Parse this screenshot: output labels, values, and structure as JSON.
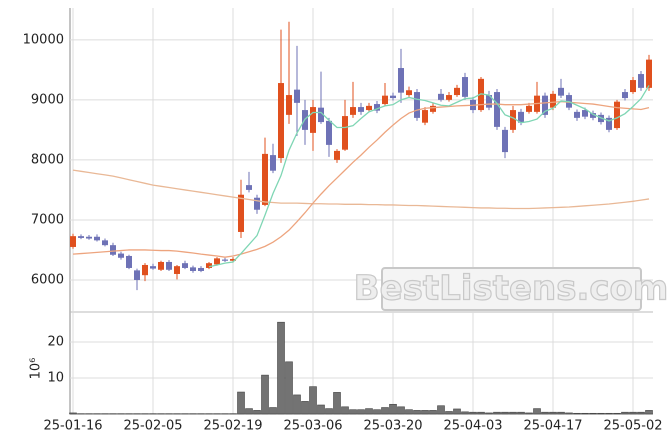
{
  "watermark": "BestListens.com",
  "chart_data": [
    {
      "type": "candlestick",
      "up_color": "#e0501e",
      "down_color": "#6e72b6",
      "ylim": [
        5500,
        10530
      ],
      "yticks": [
        6000,
        7000,
        8000,
        9000,
        10000
      ],
      "grid": true,
      "open": [
        6550,
        6730,
        6720,
        6720,
        6660,
        6580,
        6440,
        6400,
        6160,
        6080,
        6230,
        6170,
        6300,
        6100,
        6280,
        6210,
        6200,
        6200,
        6260,
        6340,
        6320,
        6800,
        7580,
        7370,
        7250,
        8080,
        8030,
        8750,
        9170,
        8830,
        8450,
        8870,
        8650,
        8000,
        8170,
        8750,
        8880,
        8830,
        8930,
        8930,
        9070,
        9530,
        9080,
        9130,
        8620,
        8800,
        9100,
        9000,
        9080,
        9380,
        9000,
        8830,
        9080,
        9130,
        8500,
        8500,
        8800,
        8800,
        8800,
        9070,
        8870,
        9200,
        9080,
        8800,
        8830,
        8780,
        8750,
        8700,
        8530,
        9130,
        9130,
        9430,
        9200
      ],
      "high": [
        6770,
        6760,
        6750,
        6760,
        6690,
        6620,
        6470,
        6420,
        6190,
        6280,
        6270,
        6320,
        6330,
        6250,
        6320,
        6240,
        6230,
        6300,
        6380,
        6370,
        6380,
        7670,
        7800,
        7420,
        8370,
        8270,
        10170,
        10300,
        9900,
        9000,
        9000,
        9470,
        8700,
        8180,
        9000,
        9300,
        8950,
        8950,
        8980,
        9280,
        9120,
        9850,
        9220,
        9180,
        8880,
        8950,
        9180,
        9130,
        9250,
        9450,
        9050,
        9380,
        9150,
        9180,
        8550,
        8900,
        8850,
        8950,
        9300,
        9120,
        9150,
        9350,
        9120,
        8840,
        8870,
        8820,
        8790,
        8740,
        9000,
        9180,
        9380,
        9480,
        9750
      ],
      "low": [
        6520,
        6680,
        6670,
        6640,
        6560,
        6400,
        6340,
        6180,
        5830,
        5980,
        6170,
        6150,
        6150,
        6010,
        6180,
        6120,
        6130,
        6180,
        6240,
        6300,
        6290,
        6700,
        7460,
        7100,
        7230,
        7780,
        7950,
        8600,
        8400,
        8250,
        8150,
        8600,
        8050,
        7950,
        8150,
        8700,
        8750,
        8800,
        8780,
        8900,
        8990,
        8950,
        9050,
        8650,
        8580,
        8770,
        8970,
        8970,
        9050,
        9000,
        8780,
        8800,
        8830,
        8500,
        8030,
        8450,
        8580,
        8770,
        8770,
        8700,
        8830,
        9030,
        8830,
        8650,
        8680,
        8660,
        8590,
        8460,
        8500,
        8990,
        9100,
        9150,
        9150
      ],
      "close": [
        6730,
        6700,
        6690,
        6660,
        6580,
        6420,
        6370,
        6200,
        6000,
        6250,
        6190,
        6300,
        6170,
        6230,
        6200,
        6150,
        6150,
        6280,
        6360,
        6320,
        6350,
        7420,
        7500,
        7170,
        8100,
        7820,
        9280,
        9080,
        8950,
        8500,
        8880,
        8630,
        8250,
        8150,
        8730,
        8880,
        8800,
        8900,
        8820,
        9070,
        9030,
        9120,
        9160,
        8700,
        8830,
        8900,
        9000,
        9080,
        9200,
        9050,
        8830,
        9350,
        8870,
        8550,
        8130,
        8830,
        8620,
        8900,
        9070,
        8750,
        9100,
        9070,
        8870,
        8700,
        8720,
        8700,
        8630,
        8500,
        8970,
        9030,
        9330,
        9200,
        9670
      ],
      "series": [
        {
          "color": "#e9b896",
          "values": [
            7830,
            7810,
            7790,
            7770,
            7750,
            7730,
            7700,
            7670,
            7640,
            7610,
            7580,
            7560,
            7540,
            7520,
            7500,
            7480,
            7460,
            7440,
            7420,
            7400,
            7380,
            7360,
            7340,
            7320,
            7300,
            7290,
            7280,
            7280,
            7280,
            7275,
            7270,
            7270,
            7265,
            7265,
            7260,
            7260,
            7260,
            7255,
            7255,
            7250,
            7250,
            7245,
            7240,
            7240,
            7235,
            7230,
            7225,
            7220,
            7215,
            7210,
            7205,
            7200,
            7200,
            7195,
            7195,
            7190,
            7190,
            7190,
            7195,
            7200,
            7205,
            7210,
            7215,
            7225,
            7235,
            7245,
            7255,
            7265,
            7280,
            7295,
            7310,
            7330,
            7350
          ]
        },
        {
          "color": "#eda47e",
          "values": [
            6430,
            6440,
            6450,
            6460,
            6470,
            6480,
            6490,
            6500,
            6500,
            6500,
            6495,
            6490,
            6490,
            6480,
            6465,
            6450,
            6430,
            6415,
            6400,
            6380,
            6400,
            6430,
            6470,
            6510,
            6560,
            6630,
            6720,
            6830,
            6970,
            7120,
            7280,
            7430,
            7570,
            7700,
            7830,
            7960,
            8080,
            8210,
            8330,
            8460,
            8580,
            8690,
            8780,
            8830,
            8860,
            8870,
            8880,
            8890,
            8900,
            8905,
            8910,
            8920,
            8930,
            8930,
            8920,
            8920,
            8920,
            8930,
            8940,
            8950,
            8960,
            8970,
            8960,
            8950,
            8940,
            8930,
            8910,
            8890,
            8870,
            8860,
            8850,
            8840,
            8870
          ]
        },
        {
          "color": "#7fd6b4",
          "values": [
            null,
            null,
            null,
            null,
            null,
            null,
            null,
            null,
            null,
            null,
            null,
            null,
            null,
            null,
            null,
            null,
            null,
            6220,
            6250,
            6280,
            6300,
            6440,
            6590,
            6740,
            7080,
            7440,
            7740,
            8160,
            8450,
            8680,
            8790,
            8790,
            8660,
            8540,
            8540,
            8570,
            8690,
            8800,
            8850,
            8900,
            8920,
            9000,
            9040,
            9010,
            8990,
            8950,
            8910,
            8900,
            8960,
            9020,
            9030,
            9100,
            9080,
            8940,
            8750,
            8700,
            8620,
            8640,
            8680,
            8810,
            8860,
            8980,
            8970,
            8910,
            8850,
            8760,
            8700,
            8650,
            8700,
            8770,
            8890,
            9020,
            9240
          ]
        }
      ]
    },
    {
      "type": "bar",
      "ylabel": "10⁶",
      "color": "#737373",
      "ylim": [
        0,
        27.5
      ],
      "yticks": [
        10,
        20
      ],
      "grid": true,
      "categories": [
        "25-01-16",
        null,
        null,
        null,
        null,
        null,
        null,
        null,
        null,
        null,
        "25-02-05",
        null,
        null,
        null,
        null,
        null,
        null,
        null,
        null,
        null,
        "25-02-19",
        null,
        null,
        null,
        null,
        null,
        null,
        null,
        null,
        null,
        "25-03-06",
        null,
        null,
        null,
        null,
        null,
        null,
        null,
        null,
        null,
        "25-03-20",
        null,
        null,
        null,
        null,
        null,
        null,
        null,
        null,
        null,
        "25-04-03",
        null,
        null,
        null,
        null,
        null,
        null,
        null,
        null,
        null,
        "25-04-17",
        null,
        null,
        null,
        null,
        null,
        null,
        null,
        null,
        null,
        "25-05-02",
        null,
        null
      ],
      "values": [
        0.3,
        0.1,
        0.1,
        0.1,
        0.1,
        0.1,
        0.1,
        0.1,
        0.1,
        0.1,
        0.1,
        0.1,
        0.1,
        0.1,
        0.1,
        0.1,
        0.1,
        0.1,
        0.1,
        0.1,
        0.1,
        6.1,
        1.5,
        1.0,
        10.8,
        1.8,
        25.5,
        14.5,
        5.3,
        3.5,
        7.6,
        2.5,
        1.5,
        6.0,
        2.0,
        1.2,
        1.2,
        1.5,
        1.2,
        1.8,
        2.7,
        2.0,
        1.2,
        1.0,
        1.0,
        1.0,
        2.3,
        0.7,
        1.4,
        0.6,
        0.5,
        0.5,
        0.3,
        0.5,
        0.5,
        0.5,
        0.5,
        0.3,
        1.5,
        0.5,
        0.5,
        0.5,
        0.3,
        0.2,
        0.2,
        0.2,
        0.2,
        0.2,
        0.2,
        0.5,
        0.5,
        0.5,
        1.0
      ]
    }
  ]
}
